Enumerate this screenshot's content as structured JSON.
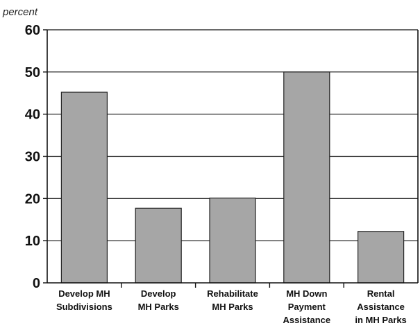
{
  "chart_data": {
    "type": "bar",
    "ylabel": "percent",
    "xlabel": "",
    "title": "",
    "ylim": [
      0,
      60
    ],
    "yticks": [
      0,
      10,
      20,
      30,
      40,
      50,
      60
    ],
    "grid": true,
    "bar_color": "#a6a6a6",
    "categories": [
      [
        "Develop MH",
        "Subdivisions"
      ],
      [
        "Develop",
        "MH Parks"
      ],
      [
        "Rehabilitate",
        "MH Parks"
      ],
      [
        "MH Down",
        "Payment",
        "Assistance"
      ],
      [
        "Rental",
        "Assistance",
        "in MH Parks"
      ]
    ],
    "values": [
      45.2,
      17.7,
      20.1,
      50,
      12.2
    ]
  }
}
